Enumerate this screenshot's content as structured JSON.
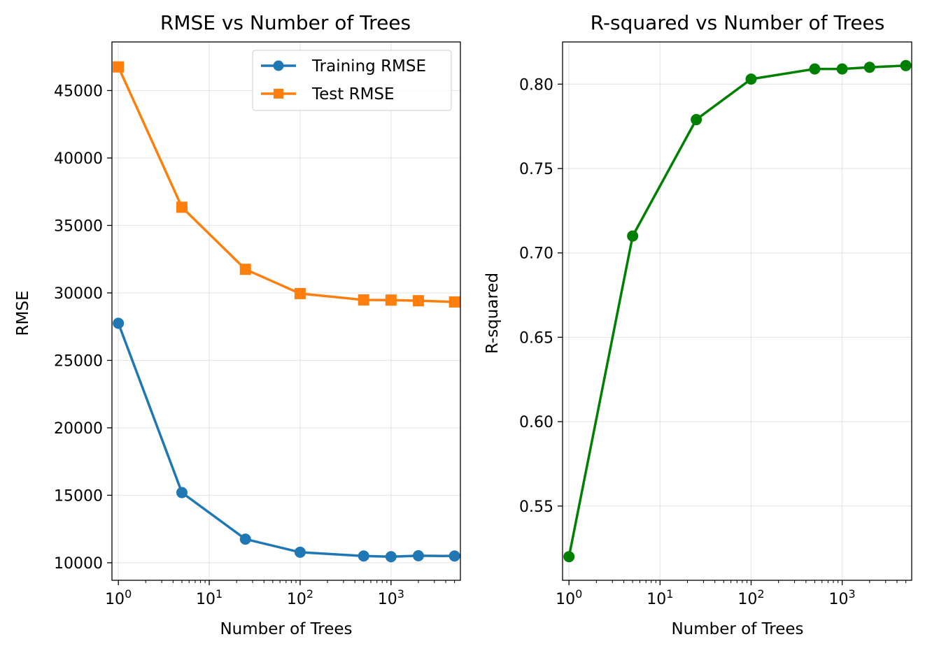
{
  "chart_data": [
    {
      "type": "line",
      "title": "RMSE vs Number of Trees",
      "xlabel": "Number of Trees",
      "ylabel": "RMSE",
      "xscale": "log",
      "xlim": [
        0.85,
        5800
      ],
      "ylim": [
        8700,
        48600
      ],
      "x_ticks": [
        {
          "value": 1,
          "base": "10",
          "exp": "0"
        },
        {
          "value": 10,
          "base": "10",
          "exp": "1"
        },
        {
          "value": 100,
          "base": "10",
          "exp": "2"
        },
        {
          "value": 1000,
          "base": "10",
          "exp": "3"
        }
      ],
      "y_ticks": [
        10000,
        15000,
        20000,
        25000,
        30000,
        35000,
        40000,
        45000
      ],
      "x": [
        1,
        5,
        25,
        100,
        500,
        1000,
        2000,
        5000
      ],
      "series": [
        {
          "name": "Training RMSE",
          "color": "#1f77b4",
          "marker": "circle",
          "values": [
            27750,
            15200,
            11750,
            10780,
            10500,
            10450,
            10520,
            10500
          ]
        },
        {
          "name": "Test RMSE",
          "color": "#ff7f0e",
          "marker": "square",
          "values": [
            46750,
            36350,
            31750,
            29950,
            29480,
            29470,
            29420,
            29330
          ]
        }
      ],
      "grid": true,
      "legend": "top-right"
    },
    {
      "type": "line",
      "title": "R-squared vs Number of Trees",
      "xlabel": "Number of Trees",
      "ylabel": "R-squared",
      "xscale": "log",
      "xlim": [
        0.85,
        5800
      ],
      "ylim": [
        0.506,
        0.825
      ],
      "x_ticks": [
        {
          "value": 1,
          "base": "10",
          "exp": "0"
        },
        {
          "value": 10,
          "base": "10",
          "exp": "1"
        },
        {
          "value": 100,
          "base": "10",
          "exp": "2"
        },
        {
          "value": 1000,
          "base": "10",
          "exp": "3"
        }
      ],
      "y_ticks": [
        0.55,
        0.6,
        0.65,
        0.7,
        0.75,
        0.8
      ],
      "y_tick_labels": [
        "0.55",
        "0.60",
        "0.65",
        "0.70",
        "0.75",
        "0.80"
      ],
      "x": [
        1,
        5,
        25,
        100,
        500,
        1000,
        2000,
        5000
      ],
      "series": [
        {
          "color": "#008000",
          "marker": "circle",
          "values": [
            0.52,
            0.71,
            0.779,
            0.803,
            0.809,
            0.809,
            0.81,
            0.811
          ]
        }
      ],
      "grid": true
    }
  ]
}
